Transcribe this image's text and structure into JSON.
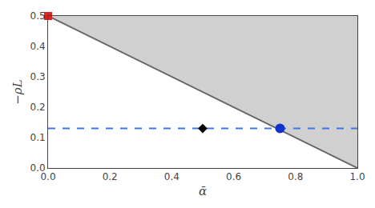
{
  "chart_data": {
    "type": "line",
    "xlabel": "ᾱ",
    "ylabel": "−ρL",
    "xlim": [
      0.0,
      1.0
    ],
    "ylim": [
      0.0,
      0.5
    ],
    "xticks": [
      {
        "value": 0.0,
        "label": "0.0"
      },
      {
        "value": 0.2,
        "label": "0.2"
      },
      {
        "value": 0.4,
        "label": "0.4"
      },
      {
        "value": 0.6,
        "label": "0.6"
      },
      {
        "value": 0.8,
        "label": "0.8"
      },
      {
        "value": 1.0,
        "label": "1.0"
      }
    ],
    "yticks": [
      {
        "value": 0.0,
        "label": "0.0"
      },
      {
        "value": 0.1,
        "label": "0.1"
      },
      {
        "value": 0.2,
        "label": "0.2"
      },
      {
        "value": 0.3,
        "label": "0.3"
      },
      {
        "value": 0.4,
        "label": "0.4"
      },
      {
        "value": 0.5,
        "label": "0.5"
      }
    ],
    "grid": false,
    "series": [
      {
        "type": "area",
        "color": "#d0d0d0",
        "x": [
          0.0,
          1.0,
          1.0,
          0.0
        ],
        "values": [
          0.5,
          0.0,
          0.5,
          0.5
        ]
      },
      {
        "type": "line",
        "color": "#666666",
        "line_style": "solid",
        "x": [
          0.0,
          1.0
        ],
        "values": [
          0.5,
          0.0
        ]
      },
      {
        "type": "line",
        "color": "#4477dd",
        "line_style": "dashed",
        "x": [
          0.0,
          1.0
        ],
        "values": [
          0.13,
          0.13
        ]
      },
      {
        "type": "scatter",
        "color": "#dd2222",
        "marker": "square",
        "x": [
          0.0
        ],
        "values": [
          0.5
        ]
      },
      {
        "type": "scatter",
        "color": "#000000",
        "marker": "diamond",
        "x": [
          0.5
        ],
        "values": [
          0.13
        ]
      },
      {
        "type": "scatter",
        "color": "#1133cc",
        "marker": "circle",
        "x": [
          0.75
        ],
        "values": [
          0.13
        ]
      }
    ]
  }
}
